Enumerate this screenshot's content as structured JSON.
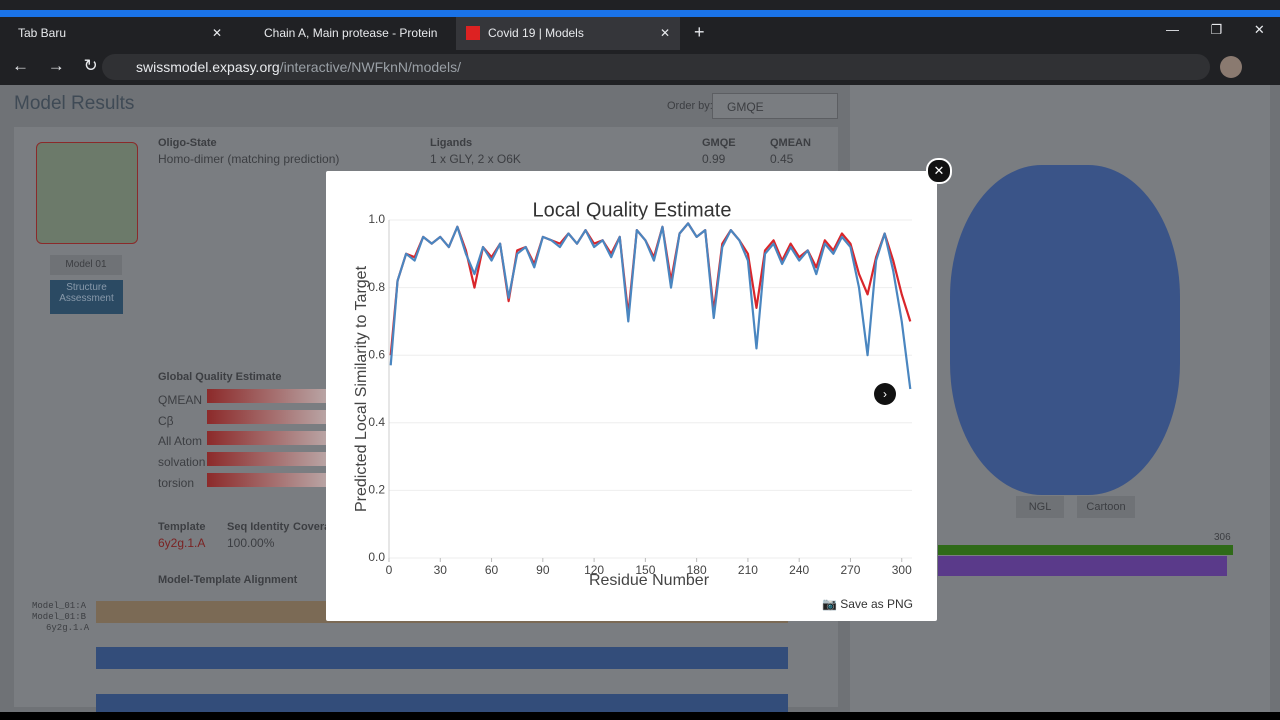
{
  "browser": {
    "tabs": [
      "Tab Baru",
      "Chain A, Main protease - Protein",
      "Covid 19 | Models"
    ],
    "url_host": "swissmodel.expasy.org",
    "url_path": "/interactive/NWFknN/models/"
  },
  "page": {
    "heading": "Model Results",
    "order_by_label": "Order by:",
    "order_by_value": "GMQE",
    "oligo_state_label": "Oligo-State",
    "oligo_state": "Homo-dimer (matching prediction)",
    "ligands_label": "Ligands",
    "ligands": "1 x GLY, 2 x O6K",
    "gmqe_label": "GMQE",
    "gmqe": "0.99",
    "qmean_label": "QMEAN",
    "qmean": "0.45",
    "model_button": "Model 01",
    "structure_button": "Structure Assessment",
    "global_quality_label": "Global Quality Estimate",
    "global_quality_rows": [
      "QMEAN",
      "Cβ",
      "All Atom",
      "solvation",
      "torsion"
    ],
    "template_label": "Template",
    "template": "6y2g.1.A",
    "seq_identity_label": "Seq Identity",
    "seq_identity": "100.00%",
    "coverage_label": "Coverage",
    "alignment_label": "Model-Template Alignment",
    "alignment_rows": [
      "Model_01:A",
      "Model_01:B",
      "6y2g.1.A"
    ],
    "viewer_buttons": [
      "NGL",
      "Cartoon"
    ],
    "residue_count": "306"
  },
  "modal": {
    "save_button": "Save as PNG"
  },
  "chart_data": {
    "type": "line",
    "title": "Local Quality Estimate",
    "x_label": "Residue Number",
    "y_label": "Predicted Local Similarity to Target",
    "x": [
      1,
      5,
      10,
      15,
      20,
      25,
      30,
      35,
      40,
      45,
      50,
      55,
      60,
      65,
      70,
      75,
      80,
      85,
      90,
      95,
      100,
      105,
      110,
      115,
      120,
      125,
      130,
      135,
      140,
      145,
      150,
      155,
      160,
      165,
      170,
      175,
      180,
      185,
      190,
      195,
      200,
      205,
      210,
      215,
      220,
      225,
      230,
      235,
      240,
      245,
      250,
      255,
      260,
      265,
      270,
      275,
      280,
      285,
      290,
      295,
      300,
      305
    ],
    "series": [
      {
        "color": "#d9262b",
        "values": [
          0.6,
          0.82,
          0.9,
          0.89,
          0.95,
          0.93,
          0.95,
          0.92,
          0.98,
          0.91,
          0.8,
          0.92,
          0.89,
          0.93,
          0.76,
          0.91,
          0.92,
          0.87,
          0.95,
          0.94,
          0.93,
          0.96,
          0.93,
          0.97,
          0.93,
          0.94,
          0.9,
          0.95,
          0.72,
          0.97,
          0.94,
          0.89,
          0.98,
          0.82,
          0.96,
          0.99,
          0.95,
          0.97,
          0.73,
          0.93,
          0.97,
          0.94,
          0.9,
          0.74,
          0.91,
          0.94,
          0.88,
          0.93,
          0.89,
          0.91,
          0.86,
          0.94,
          0.91,
          0.96,
          0.93,
          0.84,
          0.78,
          0.89,
          0.96,
          0.88,
          0.78,
          0.7
        ]
      },
      {
        "color": "#4a86c0",
        "values": [
          0.57,
          0.82,
          0.9,
          0.88,
          0.95,
          0.93,
          0.95,
          0.92,
          0.98,
          0.9,
          0.84,
          0.92,
          0.88,
          0.93,
          0.77,
          0.9,
          0.92,
          0.86,
          0.95,
          0.94,
          0.92,
          0.96,
          0.93,
          0.97,
          0.92,
          0.94,
          0.89,
          0.95,
          0.7,
          0.97,
          0.94,
          0.88,
          0.98,
          0.8,
          0.96,
          0.99,
          0.95,
          0.97,
          0.71,
          0.92,
          0.97,
          0.94,
          0.88,
          0.62,
          0.9,
          0.93,
          0.87,
          0.92,
          0.88,
          0.91,
          0.84,
          0.93,
          0.9,
          0.95,
          0.92,
          0.8,
          0.6,
          0.88,
          0.96,
          0.85,
          0.7,
          0.5
        ]
      }
    ],
    "xlim": [
      0,
      306
    ],
    "ylim": [
      0,
      1.0
    ],
    "xticks": [
      0,
      30,
      60,
      90,
      120,
      150,
      180,
      210,
      240,
      270,
      300
    ],
    "yticks": [
      {
        "value": 0,
        "label": "0.0"
      },
      {
        "value": 0.2,
        "label": "0.2"
      },
      {
        "value": 0.4,
        "label": "0.4"
      },
      {
        "value": 0.6,
        "label": "0.6"
      },
      {
        "value": 0.8,
        "label": "0.8"
      },
      {
        "value": 1.0,
        "label": "1.0"
      }
    ],
    "grid": true
  }
}
